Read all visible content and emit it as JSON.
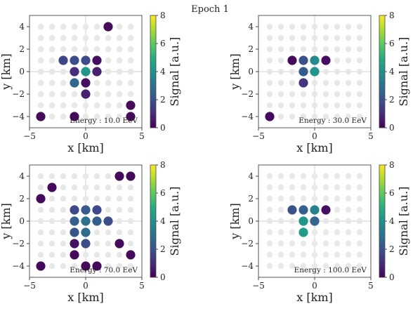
{
  "suptitle": "Epoch 1",
  "colors": {
    "grid_dot": "#e8e8e8",
    "background": "#ffffff"
  },
  "chart_data": [
    {
      "type": "scatter",
      "title": "",
      "annotation": "Energy : 10.0 EeV",
      "xlabel": "x [km]",
      "ylabel": "y [km]",
      "xlim": [
        -5,
        5
      ],
      "ylim": [
        -5,
        5
      ],
      "xticks": [
        -5,
        0,
        5
      ],
      "yticks": [
        -4,
        -2,
        0,
        2,
        4
      ],
      "colorbar": {
        "label": "Signal [a.u.]",
        "range": [
          0,
          8
        ],
        "ticks": [
          0,
          2,
          4,
          6,
          8
        ],
        "colormap": "viridis"
      },
      "grid_points": "x,y in {-4,-3,...,4}",
      "points": [
        {
          "x": 2,
          "y": 4,
          "signal": 0.2
        },
        {
          "x": -2,
          "y": 1,
          "signal": 1.7
        },
        {
          "x": -1,
          "y": 1,
          "signal": 1.9
        },
        {
          "x": 0,
          "y": 1,
          "signal": 1.8
        },
        {
          "x": 1,
          "y": 1,
          "signal": 0.3
        },
        {
          "x": -1,
          "y": 0,
          "signal": 1.0
        },
        {
          "x": 0,
          "y": 0,
          "signal": 4.2
        },
        {
          "x": 1,
          "y": 0,
          "signal": 0.7
        },
        {
          "x": -1,
          "y": -1,
          "signal": 2.6
        },
        {
          "x": 0,
          "y": -1,
          "signal": 0.3
        },
        {
          "x": 0,
          "y": -2,
          "signal": 0.7
        },
        {
          "x": 4,
          "y": -3,
          "signal": 0.2
        },
        {
          "x": -4,
          "y": -4,
          "signal": 0.2
        },
        {
          "x": -1,
          "y": -4,
          "signal": 0.2
        },
        {
          "x": 4,
          "y": -4,
          "signal": 0.2
        }
      ]
    },
    {
      "type": "scatter",
      "title": "",
      "annotation": "Energy : 30.0 EeV",
      "xlabel": "x [km]",
      "ylabel": "y [km]",
      "xlim": [
        -5,
        5
      ],
      "ylim": [
        -5,
        5
      ],
      "xticks": [
        -5,
        0,
        5
      ],
      "yticks": [
        -4,
        -2,
        0,
        2,
        4
      ],
      "colorbar": {
        "label": "Signal [a.u.]",
        "range": [
          0,
          8
        ],
        "ticks": [
          0,
          2,
          4,
          6,
          8
        ],
        "colormap": "viridis"
      },
      "grid_points": "x,y in {-4,-3,...,4}",
      "points": [
        {
          "x": -2,
          "y": 1,
          "signal": 0.2
        },
        {
          "x": -1,
          "y": 1,
          "signal": 2.0
        },
        {
          "x": 0,
          "y": 1,
          "signal": 3.8
        },
        {
          "x": 1,
          "y": 1,
          "signal": 0.3
        },
        {
          "x": -1,
          "y": 0,
          "signal": 2.3
        },
        {
          "x": 0,
          "y": 0,
          "signal": 4.2
        },
        {
          "x": -1,
          "y": -1,
          "signal": 1.2
        },
        {
          "x": -4,
          "y": -4,
          "signal": 0.2
        }
      ]
    },
    {
      "type": "scatter",
      "title": "",
      "annotation": "Energy : 70.0 EeV",
      "xlabel": "x [km]",
      "ylabel": "y [km]",
      "xlim": [
        -5,
        5
      ],
      "ylim": [
        -5,
        5
      ],
      "xticks": [
        -5,
        0,
        5
      ],
      "yticks": [
        -4,
        -2,
        0,
        2,
        4
      ],
      "colorbar": {
        "label": "Signal [a.u.]",
        "range": [
          0,
          8
        ],
        "ticks": [
          0,
          2,
          4,
          6,
          8
        ],
        "colormap": "viridis"
      },
      "grid_points": "x,y in {-4,-3,...,4}",
      "points": [
        {
          "x": 3,
          "y": 4,
          "signal": 0.2
        },
        {
          "x": 4,
          "y": 4,
          "signal": 0.2
        },
        {
          "x": -3,
          "y": 3,
          "signal": 0.2
        },
        {
          "x": -4,
          "y": 2,
          "signal": 0.2
        },
        {
          "x": -1,
          "y": 1,
          "signal": 1.8
        },
        {
          "x": 0,
          "y": 1,
          "signal": 2.3
        },
        {
          "x": 1,
          "y": 1,
          "signal": 1.8
        },
        {
          "x": -1,
          "y": 0,
          "signal": 2.4
        },
        {
          "x": 0,
          "y": 0,
          "signal": 2.9
        },
        {
          "x": 1,
          "y": 0,
          "signal": 2.4
        },
        {
          "x": 2,
          "y": 0,
          "signal": 1.9
        },
        {
          "x": -1,
          "y": -1,
          "signal": 2.1
        },
        {
          "x": 0,
          "y": -1,
          "signal": 2.8
        },
        {
          "x": -1,
          "y": -2,
          "signal": 0.4
        },
        {
          "x": 0,
          "y": -2,
          "signal": 1.9
        },
        {
          "x": 3,
          "y": -2,
          "signal": 0.2
        },
        {
          "x": -1,
          "y": -3,
          "signal": 0.2
        },
        {
          "x": 4,
          "y": -3,
          "signal": 0.2
        },
        {
          "x": -4,
          "y": -4,
          "signal": 0.2
        },
        {
          "x": 0,
          "y": -4,
          "signal": 0.2
        },
        {
          "x": 1,
          "y": -4,
          "signal": 0.2
        }
      ]
    },
    {
      "type": "scatter",
      "title": "",
      "annotation": "Energy : 100.0 EeV",
      "xlabel": "x [km]",
      "ylabel": "y [km]",
      "xlim": [
        -5,
        5
      ],
      "ylim": [
        -5,
        5
      ],
      "xticks": [
        -5,
        0,
        5
      ],
      "yticks": [
        -4,
        -2,
        0,
        2,
        4
      ],
      "colorbar": {
        "label": "Signal [a.u.]",
        "range": [
          0,
          8
        ],
        "ticks": [
          0,
          2,
          4,
          6,
          8
        ],
        "colormap": "viridis"
      },
      "grid_points": "x,y in {-4,-3,...,4}",
      "points": [
        {
          "x": -2,
          "y": 1,
          "signal": 2.0
        },
        {
          "x": -1,
          "y": 1,
          "signal": 2.4
        },
        {
          "x": 0,
          "y": 1,
          "signal": 3.6
        },
        {
          "x": 1,
          "y": 1,
          "signal": 0.3
        },
        {
          "x": -1,
          "y": 0,
          "signal": 4.2
        },
        {
          "x": 0,
          "y": 0,
          "signal": 2.6
        },
        {
          "x": -1,
          "y": -1,
          "signal": 4.4
        }
      ]
    }
  ]
}
